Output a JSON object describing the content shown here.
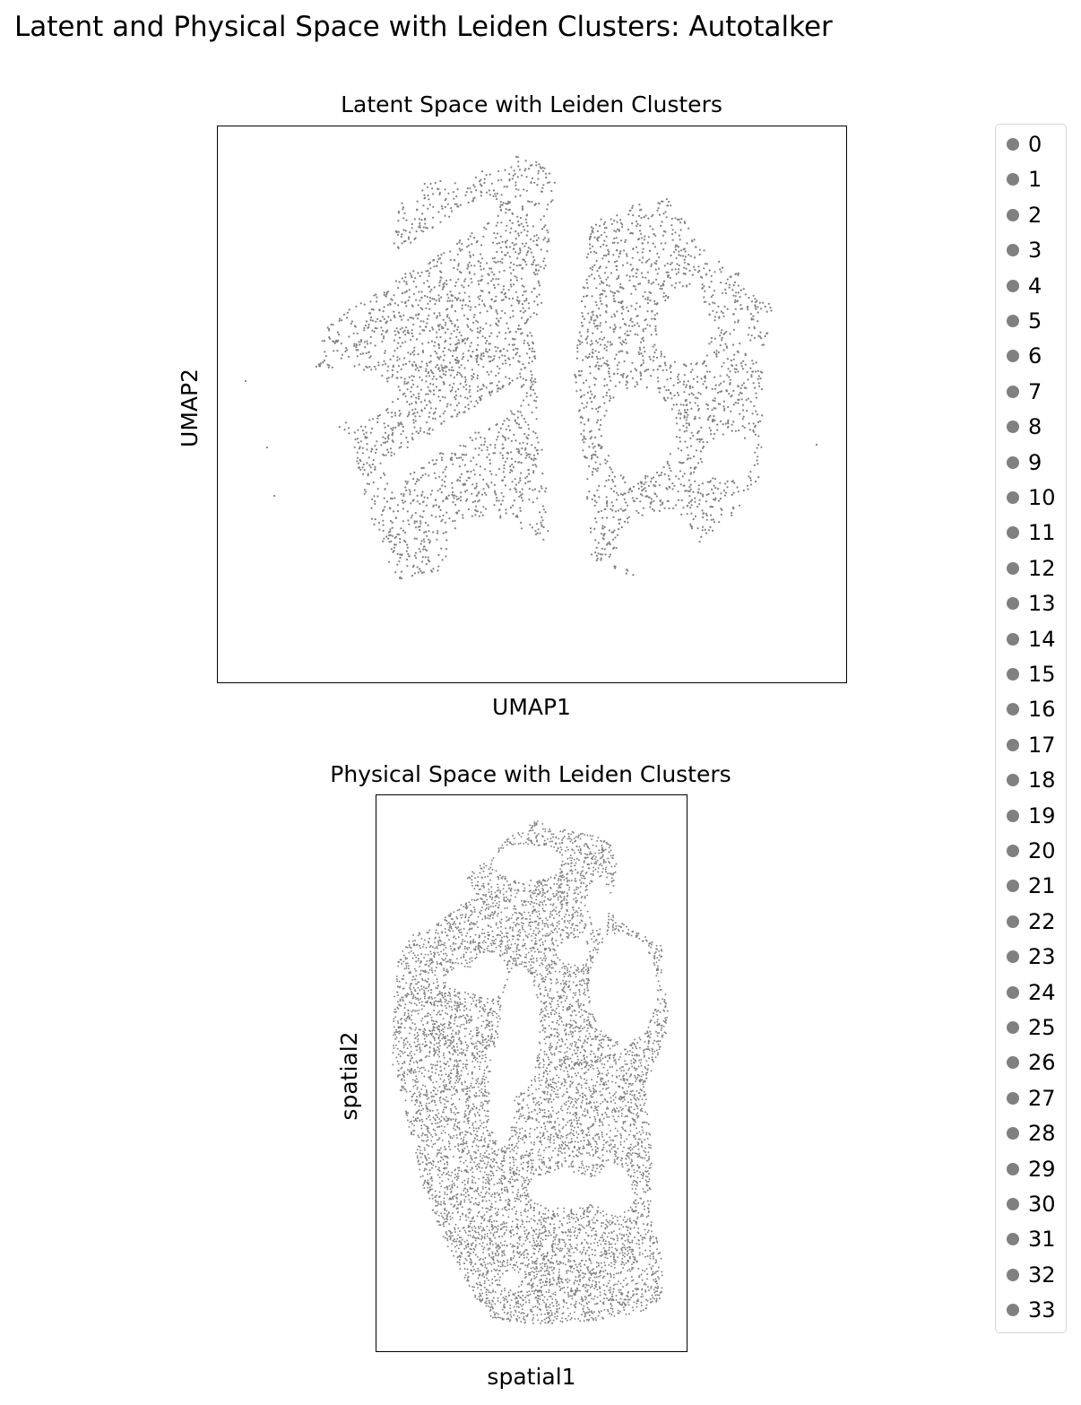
{
  "figure": {
    "title": "Latent and Physical Space with Leiden Clusters: Autotalker",
    "point_color": "#808080"
  },
  "chart_data": [
    {
      "type": "scatter",
      "title": "Latent Space with Leiden Clusters",
      "xlabel": "UMAP1",
      "ylabel": "UMAP2",
      "xticks": [],
      "yticks": [],
      "grid": false,
      "legend_placement": "right",
      "series": [
        {
          "name": "0",
          "color": "#808080",
          "shape": "umap-radial"
        }
      ]
    },
    {
      "type": "scatter",
      "title": "Physical Space with Leiden Clusters",
      "xlabel": "spatial1",
      "ylabel": "spatial2",
      "xticks": [],
      "yticks": [],
      "grid": false,
      "legend_placement": "right",
      "series": [
        {
          "name": "0",
          "color": "#808080",
          "shape": "tissue-section"
        }
      ]
    }
  ],
  "legend": {
    "items": [
      "0",
      "1",
      "2",
      "3",
      "4",
      "5",
      "6",
      "7",
      "8",
      "9",
      "10",
      "11",
      "12",
      "13",
      "14",
      "15",
      "16",
      "17",
      "18",
      "19",
      "20",
      "21",
      "22",
      "23",
      "24",
      "25",
      "26",
      "27",
      "28",
      "29",
      "30",
      "31",
      "32",
      "33"
    ],
    "marker_color": "#808080"
  }
}
